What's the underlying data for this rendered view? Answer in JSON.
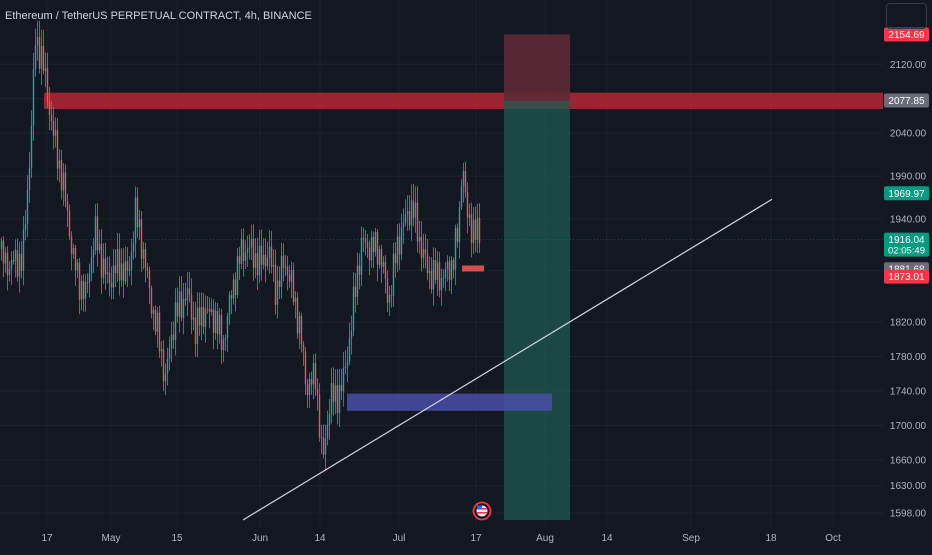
{
  "header": {
    "title": "Ethereum / TetherUS PERPETUAL CONTRACT, 4h, BINANCE"
  },
  "colors": {
    "background": "#131722",
    "text": "#b2b5be",
    "up": "#26a69a",
    "down": "#ef5350",
    "resistance_zone": "#b22833",
    "target_zone": "#1e5a52",
    "stop_zone": "#5e2a35",
    "support_zone": "#4a4fa6"
  },
  "chart_data": {
    "type": "candlestick",
    "y_axis": {
      "ticks": [
        "2120.00",
        "2080.00",
        "2040.00",
        "1990.00",
        "1940.00",
        "1880.00",
        "1820.00",
        "1780.00",
        "1740.00",
        "1700.00",
        "1660.00",
        "1630.00",
        "1598.00"
      ],
      "tick_values": [
        2120,
        2080,
        2040,
        1990,
        1940,
        1880,
        1820,
        1780,
        1740,
        1700,
        1660,
        1630,
        1598
      ],
      "range": [
        1590,
        2175
      ]
    },
    "x_axis": {
      "labels": [
        "17",
        "May",
        "15",
        "Jun",
        "14",
        "Jul",
        "17",
        "Aug",
        "14",
        "Sep",
        "18",
        "Oct"
      ]
    },
    "price_labels": [
      {
        "text": "2154.69",
        "value": 2154.69,
        "color": "#f23645"
      },
      {
        "text": "2077.85",
        "value": 2077.85,
        "color": "#6a6d78"
      },
      {
        "text": "1969.97",
        "value": 1969.97,
        "color": "#089981"
      },
      {
        "text": "1916.04",
        "value": 1916.04,
        "color": "#089981",
        "subtext": "02:05:49"
      },
      {
        "text": "1881.68",
        "value": 1881.68,
        "color": "#6a6d78"
      },
      {
        "text": "1873.01",
        "value": 1873.01,
        "color": "#f23645"
      }
    ],
    "zones": [
      {
        "name": "resistance",
        "y_range": [
          2068,
          2087
        ]
      },
      {
        "name": "stop",
        "y_range": [
          2077.85,
          2154.69
        ]
      },
      {
        "name": "target",
        "y_range": [
          1590,
          2077.85
        ]
      },
      {
        "name": "support",
        "y_range": [
          1717,
          1737
        ]
      }
    ],
    "trendline": {
      "from": 1590,
      "to": 1963
    }
  }
}
